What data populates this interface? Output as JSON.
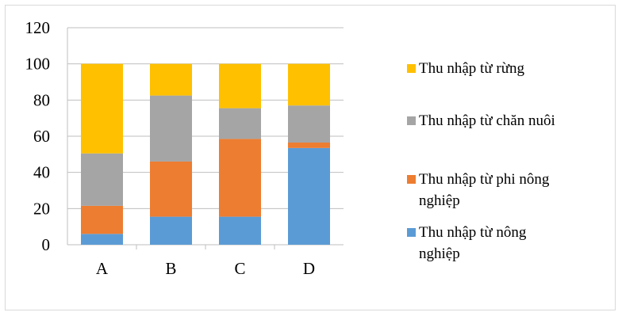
{
  "chart_data": {
    "type": "bar",
    "stacked": true,
    "categories": [
      "A",
      "B",
      "C",
      "D"
    ],
    "series": [
      {
        "name": "Thu nhập từ nông nghiệp",
        "color": "#5b9bd5",
        "values": [
          6,
          15.5,
          15.5,
          53.5
        ]
      },
      {
        "name": "Thu nhập từ phi nông nghiệp",
        "color": "#ed7d31",
        "values": [
          15.5,
          30.5,
          43,
          3
        ]
      },
      {
        "name": "Thu nhập từ chăn nuôi",
        "color": "#a5a5a5",
        "values": [
          29,
          36.5,
          17,
          20.5
        ]
      },
      {
        "name": "Thu nhập từ rừng",
        "color": "#ffc000",
        "values": [
          49.5,
          17.5,
          24.5,
          23
        ]
      }
    ],
    "ylim": [
      0,
      120
    ],
    "yticks": [
      "0",
      "20",
      "40",
      "60",
      "80",
      "100",
      "120"
    ],
    "grid": true,
    "legend": "right",
    "legend_order": [
      3,
      2,
      1,
      0
    ],
    "legend_lines": [
      [
        "Thu nhập từ rừng"
      ],
      [
        "Thu nhập từ chăn nuôi"
      ],
      [
        "Thu nhập từ phi nông",
        "nghiệp"
      ],
      [
        "Thu nhập từ nông",
        "nghiệp"
      ]
    ]
  }
}
